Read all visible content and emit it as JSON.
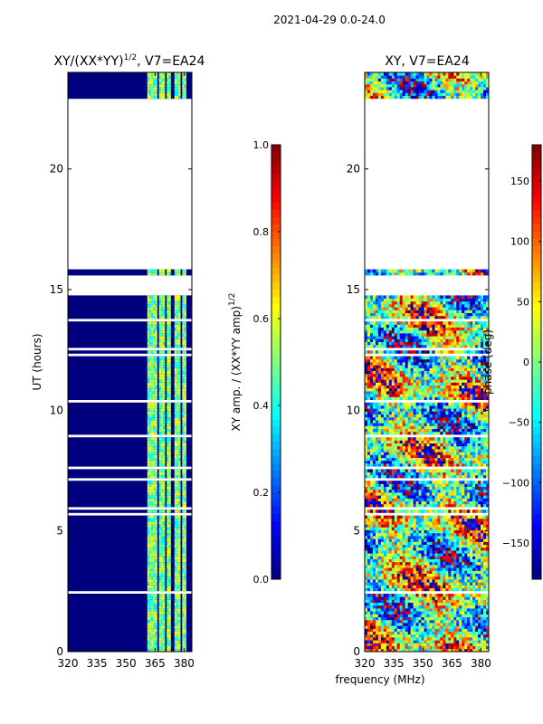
{
  "suptitle": "2021-04-29 0.0-24.0",
  "shared_xlabel": "frequency (MHz)",
  "chart_data": [
    {
      "type": "heatmap",
      "title_main": "XY/(XX*YY)",
      "title_sup": "1/2",
      "title_suffix": ", V7=EA24",
      "ylabel": "UT (hours)",
      "xlim": [
        320,
        384
      ],
      "ylim": [
        0,
        24
      ],
      "x_ticks": [
        320,
        335,
        350,
        365,
        380
      ],
      "x_tick_labels": [
        "320",
        "335",
        "350",
        "365",
        "380"
      ],
      "y_ticks": [
        0,
        5,
        10,
        15,
        20
      ],
      "y_tick_labels": [
        "0",
        "5",
        "10",
        "15",
        "20"
      ],
      "colorbar": {
        "label_main": "XY amp. / (XX*YY amp)",
        "label_sup": "1/2",
        "range": [
          0.0,
          1.0
        ],
        "ticks": [
          0.0,
          0.2,
          0.4,
          0.6,
          0.8,
          1.0
        ],
        "tick_labels": [
          "0.0",
          "0.2",
          "0.4",
          "0.6",
          "0.8",
          "1.0"
        ],
        "colormap": "jet"
      }
    },
    {
      "type": "heatmap",
      "title": "XY, V7=EA24",
      "xlim": [
        320,
        384
      ],
      "ylim": [
        0,
        24
      ],
      "x_ticks": [
        320,
        335,
        350,
        365,
        380
      ],
      "x_tick_labels": [
        "320",
        "335",
        "350",
        "365",
        "380"
      ],
      "y_ticks": [
        0,
        5,
        10,
        15,
        20
      ],
      "y_tick_labels": [
        "0",
        "5",
        "10",
        "15",
        "20"
      ],
      "colorbar": {
        "label": "phase (deg)",
        "range": [
          -180,
          180
        ],
        "ticks": [
          -150,
          -100,
          -50,
          0,
          50,
          100,
          150
        ],
        "tick_labels": [
          "−150",
          "−100",
          "−50",
          "0",
          "50",
          "100",
          "150"
        ],
        "colormap": "jet"
      }
    }
  ],
  "data_coverage_hours": [
    [
      0.0,
      14.65
    ],
    [
      15.55,
      15.8
    ],
    [
      22.9,
      24.0
    ]
  ],
  "bright_channel_bands_mhz": [
    [
      361,
      364
    ],
    [
      364.5,
      366.5
    ],
    [
      367,
      370
    ],
    [
      371,
      373
    ],
    [
      375,
      378
    ],
    [
      379,
      381
    ]
  ],
  "colors": {
    "jet_low": "#00007f",
    "jet_high": "#7f0000",
    "gap": "#ffffff",
    "axis": "#000000"
  }
}
